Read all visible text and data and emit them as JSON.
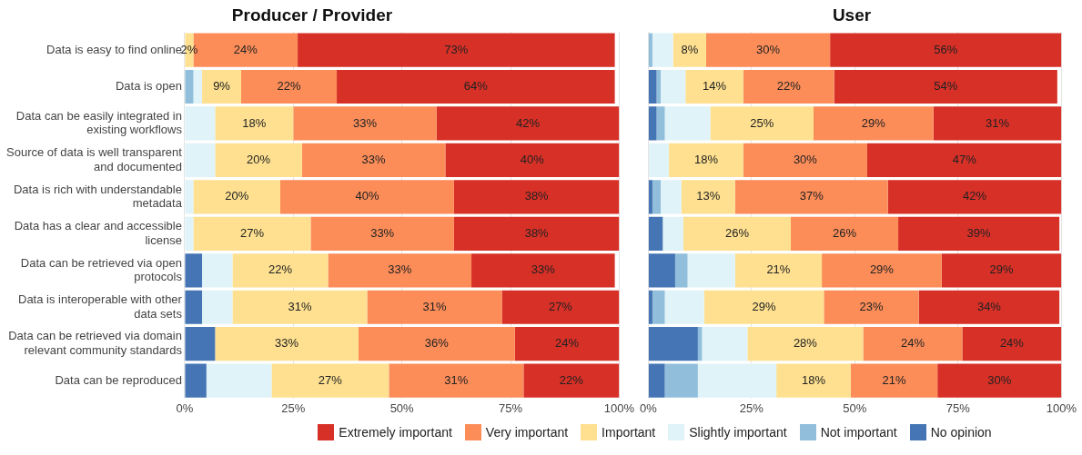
{
  "chart_data": [
    {
      "type": "bar",
      "orientation": "horizontal",
      "stacked": true,
      "title": "Producer / Provider",
      "categories": [
        "Data is easy to find online",
        "Data is open",
        "Data can be easily integrated in existing workflows",
        "Source of data is well transparent and documented",
        "Data is rich with understandable metadata",
        "Data has a clear and accessible license",
        "Data can be retrieved via open protocols",
        "Data is interoperable with other data sets",
        "Data can be retrieved via domain relevant community standards",
        "Data can be reproduced"
      ],
      "xlim": [
        0,
        100
      ],
      "xticks": [
        {
          "value": 0,
          "label": "0%"
        },
        {
          "value": 25,
          "label": "25%"
        },
        {
          "value": 50,
          "label": "50%"
        },
        {
          "value": 75,
          "label": "75%"
        },
        {
          "value": 100,
          "label": "100%"
        }
      ],
      "grid": "x",
      "legend": "bottom",
      "series": [
        {
          "name": "No opinion",
          "color": "#4575b4",
          "values": [
            0,
            0,
            0,
            0,
            0,
            0,
            4,
            4,
            7,
            5
          ],
          "value_labels": [
            null,
            null,
            null,
            null,
            null,
            null,
            null,
            null,
            null,
            null
          ]
        },
        {
          "name": "Not important",
          "color": "#91bfdb",
          "values": [
            0,
            2,
            0,
            0,
            0,
            0,
            0,
            0,
            0,
            0
          ],
          "value_labels": [
            null,
            null,
            null,
            null,
            null,
            null,
            null,
            null,
            null,
            null
          ]
        },
        {
          "name": "Slightly important",
          "color": "#e0f3f8",
          "values": [
            0,
            2,
            7,
            7,
            2,
            2,
            7,
            7,
            0,
            15
          ],
          "value_labels": [
            null,
            null,
            null,
            null,
            null,
            null,
            null,
            null,
            null,
            null
          ]
        },
        {
          "name": "Important",
          "color": "#fee090",
          "values": [
            2,
            9,
            18,
            20,
            20,
            27,
            22,
            31,
            33,
            27
          ],
          "value_labels": [
            "2%",
            "9%",
            "18%",
            "20%",
            "20%",
            "27%",
            "22%",
            "31%",
            "33%",
            "27%"
          ]
        },
        {
          "name": "Very important",
          "color": "#fc8d59",
          "values": [
            24,
            22,
            33,
            33,
            40,
            33,
            33,
            31,
            36,
            31
          ],
          "value_labels": [
            "24%",
            "22%",
            "33%",
            "33%",
            "40%",
            "33%",
            "33%",
            "31%",
            "36%",
            "31%"
          ]
        },
        {
          "name": "Extremely important",
          "color": "#d73027",
          "values": [
            73,
            64,
            42,
            40,
            38,
            38,
            33,
            27,
            24,
            22
          ],
          "value_labels": [
            "73%",
            "64%",
            "42%",
            "40%",
            "38%",
            "38%",
            "33%",
            "27%",
            "24%",
            "22%"
          ]
        }
      ]
    },
    {
      "type": "bar",
      "orientation": "horizontal",
      "stacked": true,
      "title": "User",
      "categories": [
        null,
        null,
        null,
        null,
        null,
        null,
        null,
        null,
        null,
        null
      ],
      "xlim": [
        0,
        100
      ],
      "xticks": [
        {
          "value": 0,
          "label": "0%"
        },
        {
          "value": 25,
          "label": "25%"
        },
        {
          "value": 50,
          "label": "50%"
        },
        {
          "value": 75,
          "label": "75%"
        },
        {
          "value": 100,
          "label": "100%"
        }
      ],
      "grid": "x",
      "tick_labels": "x",
      "series": [
        {
          "color": "#4575b4",
          "values": [
            0,
            2,
            2,
            0,
            1,
            3.5,
            6.5,
            1,
            12,
            4
          ],
          "value_labels": [
            null,
            null,
            null,
            null,
            null,
            null,
            null,
            null,
            null,
            null
          ]
        },
        {
          "color": "#91bfdb",
          "values": [
            1,
            1,
            2,
            0,
            2,
            0,
            3,
            3,
            1,
            8
          ],
          "value_labels": [
            null,
            null,
            null,
            null,
            null,
            null,
            null,
            null,
            null,
            null
          ]
        },
        {
          "color": "#e0f3f8",
          "values": [
            5,
            6,
            11,
            5,
            5,
            5,
            11.5,
            9.5,
            11,
            19
          ],
          "value_labels": [
            null,
            null,
            null,
            null,
            null,
            null,
            null,
            null,
            null,
            null
          ]
        },
        {
          "color": "#fee090",
          "values": [
            8,
            14,
            25,
            18,
            13,
            26,
            21,
            29,
            28,
            18
          ],
          "value_labels": [
            "8%",
            "14%",
            "25%",
            "18%",
            "13%",
            "26%",
            "21%",
            "29%",
            "28%",
            "18%"
          ]
        },
        {
          "color": "#fc8d59",
          "values": [
            30,
            22,
            29,
            30,
            37,
            26,
            29,
            23,
            24,
            21
          ],
          "value_labels": [
            "30%",
            "22%",
            "29%",
            "30%",
            "37%",
            "26%",
            "29%",
            "23%",
            "24%",
            "21%"
          ]
        },
        {
          "color": "#d73027",
          "values": [
            56,
            54,
            31,
            47,
            42,
            39,
            29,
            34,
            24,
            30
          ],
          "value_labels": [
            "56%",
            "54%",
            "31%",
            "47%",
            "42%",
            "39%",
            "29%",
            "34%",
            "24%",
            "30%"
          ]
        }
      ]
    }
  ]
}
